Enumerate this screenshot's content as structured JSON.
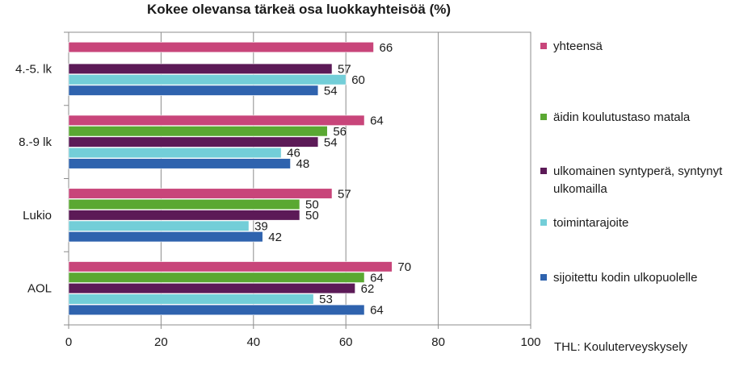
{
  "chart_data": {
    "type": "bar",
    "orientation": "horizontal",
    "title": "Kokee olevansa tärkeä osa luokkayhteisöä (%)",
    "xlim": [
      0,
      100
    ],
    "xticks": [
      0,
      20,
      40,
      60,
      80,
      100
    ],
    "grid": true,
    "legend_position": "right",
    "source": "THL: Kouluterveyskysely",
    "series_legend": [
      {
        "name": "yhteensä",
        "color": "#c8457a"
      },
      {
        "name": "äidin koulutustaso matala",
        "color": "#5aa832"
      },
      {
        "name": "ulkomainen syntyperä, syntynyt ulkomailla",
        "color": "#5c1a57"
      },
      {
        "name": "toimintarajoite",
        "color": "#73ced8"
      },
      {
        "name": "sijoitettu kodin ulkopuolelle",
        "color": "#2f63ae"
      }
    ],
    "groups": [
      {
        "label": "4.-5. lk",
        "bars": [
          {
            "series": "yhteensä",
            "value": 66
          },
          {
            "series": "ulkomainen syntyperä, syntynyt ulkomailla",
            "value": 57
          },
          {
            "series": "toimintarajoite",
            "value": 60
          },
          {
            "series": "sijoitettu kodin ulkopuolelle",
            "value": 54
          }
        ]
      },
      {
        "label": "8.-9 lk",
        "bars": [
          {
            "series": "yhteensä",
            "value": 64
          },
          {
            "series": "äidin koulutustaso matala",
            "value": 56
          },
          {
            "series": "ulkomainen syntyperä, syntynyt ulkomailla",
            "value": 54
          },
          {
            "series": "toimintarajoite",
            "value": 46
          },
          {
            "series": "sijoitettu kodin ulkopuolelle",
            "value": 48
          }
        ]
      },
      {
        "label": "Lukio",
        "bars": [
          {
            "series": "yhteensä",
            "value": 57
          },
          {
            "series": "äidin koulutustaso matala",
            "value": 50
          },
          {
            "series": "ulkomainen syntyperä, syntynyt ulkomailla",
            "value": 50
          },
          {
            "series": "toimintarajoite",
            "value": 39
          },
          {
            "series": "sijoitettu kodin ulkopuolelle",
            "value": 42
          }
        ]
      },
      {
        "label": "AOL",
        "bars": [
          {
            "series": "yhteensä",
            "value": 70
          },
          {
            "series": "äidin koulutustaso matala",
            "value": 64
          },
          {
            "series": "ulkomainen syntyperä, syntynyt ulkomailla",
            "value": 62
          },
          {
            "series": "toimintarajoite",
            "value": 53
          },
          {
            "series": "sijoitettu kodin ulkopuolelle",
            "value": 64
          }
        ]
      }
    ]
  }
}
